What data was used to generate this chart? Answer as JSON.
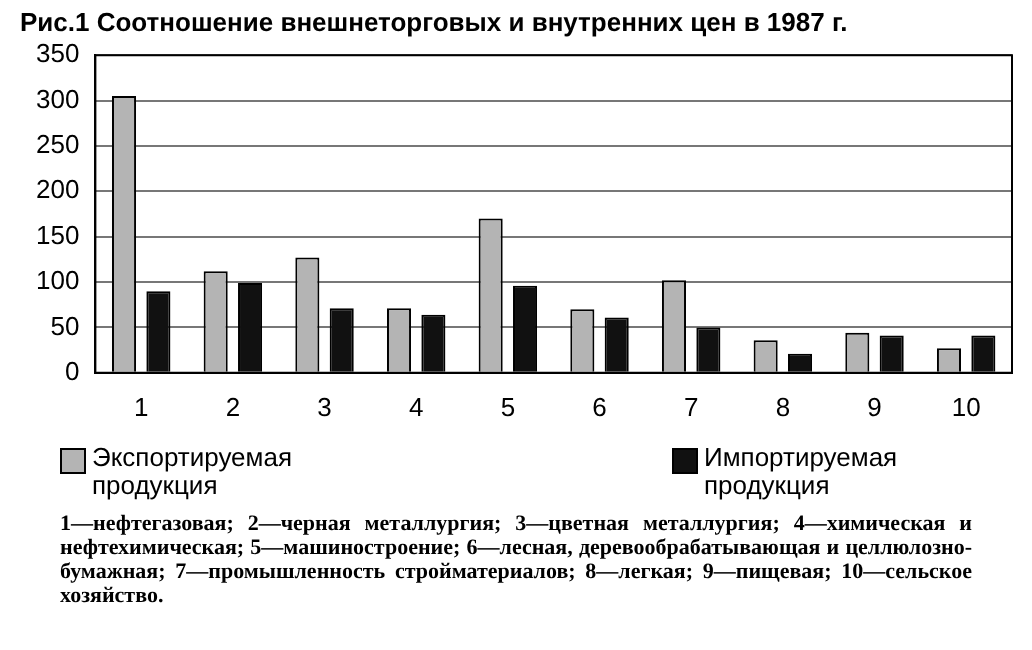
{
  "chart_data": {
    "type": "bar",
    "title": "Рис.1 Соотношение внешнеторговых и внутренних цен в 1987 г.",
    "categories": [
      "1",
      "2",
      "3",
      "4",
      "5",
      "6",
      "7",
      "8",
      "9",
      "10"
    ],
    "series": [
      {
        "name": "Экспортируемая продукция",
        "color": "#b4b4b4",
        "values": [
          305,
          112,
          127,
          71,
          170,
          70,
          102,
          36,
          44,
          27
        ]
      },
      {
        "name": "Импортируемая продукция",
        "color": "#111111",
        "values": [
          90,
          99,
          71,
          64,
          96,
          61,
          50,
          21,
          41,
          41
        ]
      }
    ],
    "ylim": [
      0,
      350
    ],
    "yticks": [
      0,
      50,
      100,
      150,
      200,
      250,
      300,
      350
    ],
    "grid": "y",
    "legend": "bottom",
    "annotations": [
      "1—нефтегазовая; 2—черная металлургия; 3—цветная металлургия; 4—химическая и нефтехимическая; 5—машиностроение; 6—лесная, деревообрабатывающая и целлюлозно-бумажная; 7—промышленность стройматериалов; 8—легкая; 9—пищевая; 10—сельское хозяйство."
    ]
  }
}
